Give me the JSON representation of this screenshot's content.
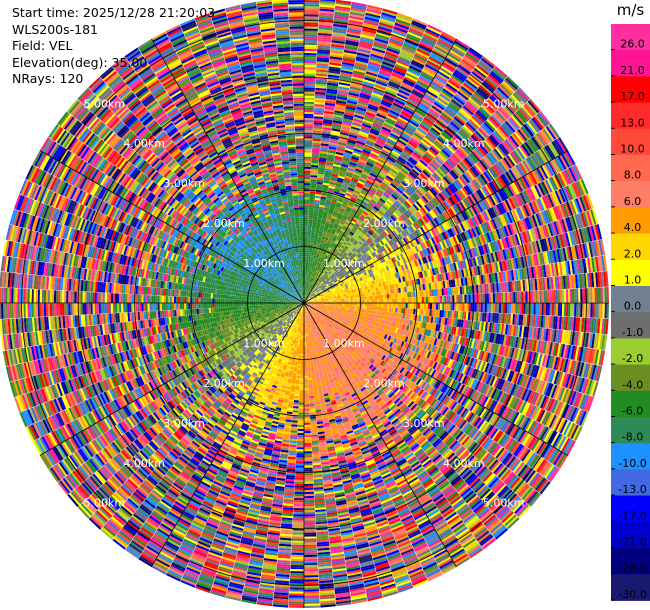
{
  "header": {
    "start_time": "Start time: 2025/12/28 21:20:03",
    "station": "WLS200s-181",
    "field": "Field: VEL",
    "elevation": "Elevation(deg): 35.00",
    "nrays": "NRays: 120"
  },
  "chart_data": {
    "type": "heatmap",
    "subtype": "radar-ppi",
    "field": "VEL",
    "units": "m/s",
    "n_rays": 120,
    "elevation_deg": 35.0,
    "range_rings_km": [
      1.0,
      2.0,
      3.0,
      4.0,
      5.0
    ],
    "range_ring_labels": [
      "1.00km",
      "2.00km",
      "3.00km",
      "4.00km",
      "5.00km"
    ],
    "max_range_km": 5.4,
    "spokes_deg": [
      0,
      30,
      60,
      90,
      120,
      150,
      180,
      210,
      240,
      270,
      300,
      330
    ],
    "colorbar": {
      "title": "m/s",
      "levels": [
        26.0,
        21.0,
        17.0,
        13.0,
        10.0,
        8.0,
        6.0,
        4.0,
        2.0,
        1.0,
        0.0,
        -1.0,
        -2.0,
        -4.0,
        -6.0,
        -8.0,
        -10.0,
        -13.0,
        -17.0,
        -21.0,
        -26.0,
        -30.0
      ],
      "tick_labels": [
        "26.0",
        "21.0",
        "17.0",
        "13.0",
        "10.0",
        "8.0",
        "6.0",
        "4.0",
        "2.0",
        "1.0",
        "0.0",
        "-1.0",
        "-2.0",
        "-4.0",
        "-6.0",
        "-8.0",
        "-10.0",
        "-13.0",
        "-17.0",
        "-21.0",
        "-26.0",
        "-30.0"
      ],
      "colors": [
        "#ff2fa0",
        "#ff1493",
        "#ff0000",
        "#ff2a2a",
        "#ff4a3a",
        "#ff6a50",
        "#ff7f66",
        "#ff9d00",
        "#ffd700",
        "#ffff00",
        "#708090",
        "#6e6e6e",
        "#9acd32",
        "#6b8e23",
        "#228b22",
        "#2e8b57",
        "#1e90ff",
        "#4169e1",
        "#0000ff",
        "#0000cd",
        "#000080",
        "#191970"
      ]
    },
    "pattern": "Near-range gates show coherent flow: receding (yellow/orange/red, 1-10 m/s) toward south-east, approaching/weak (green/olive, -1 to -6 m/s) toward north-west; beyond ~2 km the field is dominated by noisy random values across the full colour scale."
  }
}
